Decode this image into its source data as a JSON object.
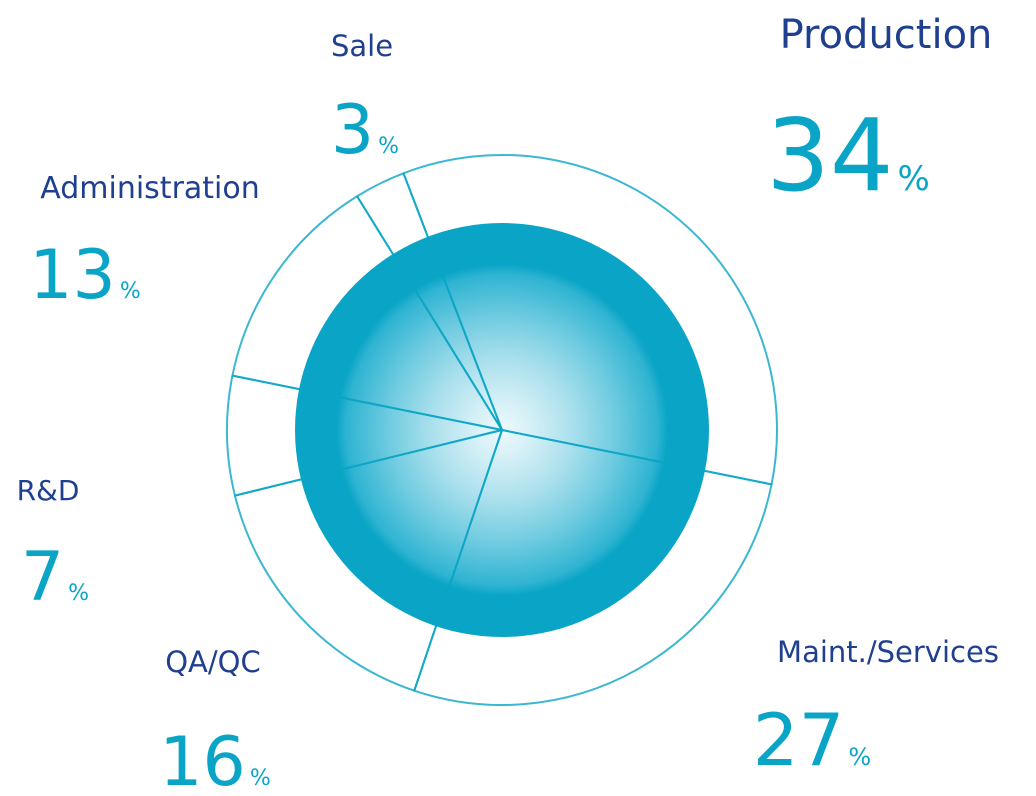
{
  "chart_data": {
    "type": "pie",
    "categories": [
      "Production",
      "Maint./Services",
      "QA/QC",
      "R&D",
      "Administration",
      "Sale"
    ],
    "values": [
      34,
      27,
      16,
      7,
      13,
      3
    ],
    "value_suffix": "%",
    "color": "#0aa5c6",
    "label_color": "#1f3f8f"
  }
}
